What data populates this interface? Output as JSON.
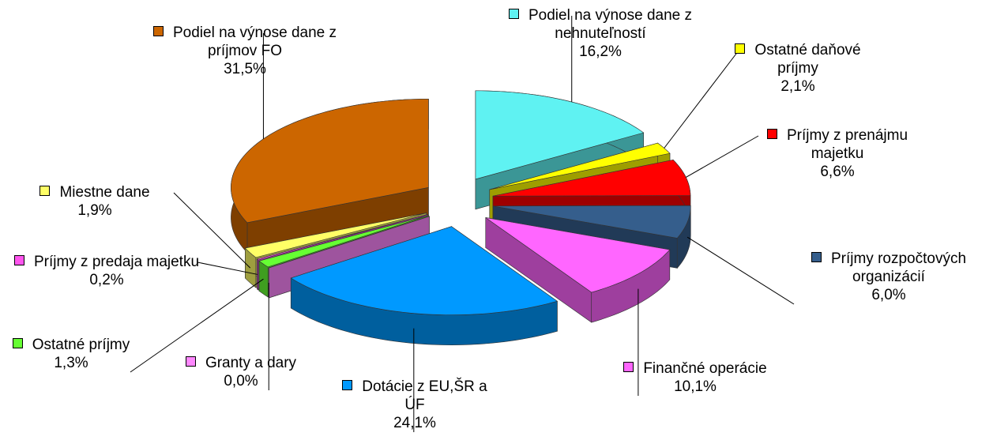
{
  "chart_data": {
    "type": "pie",
    "categories": [
      "Podiel na výnose dane z nehnuteľností",
      "Ostatné daňové príjmy",
      "Príjmy z prenájmu majetku",
      "Príjmy rozpočtových organizácií",
      "Finančné operácie",
      "Dotácie z EU,ŠR a ÚF",
      "Granty a dary",
      "Ostatné príjmy",
      "Príjmy z predaja majetku",
      "Miestne dane",
      "Podiel na výnose dane z príjmov FO"
    ],
    "values": [
      16.2,
      2.1,
      6.6,
      6.0,
      10.1,
      24.1,
      0.0,
      1.3,
      0.2,
      1.9,
      31.5
    ],
    "value_labels": [
      "16,2%",
      "2,1%",
      "6,6%",
      "6,0%",
      "10,1%",
      "24,1%",
      "0,0%",
      "1,3%",
      "0,2%",
      "1,9%",
      "31,5%"
    ],
    "colors": [
      "#5ff2f2",
      "#ffff00",
      "#ff0000",
      "#355e8c",
      "#ff66ff",
      "#0099ff",
      "#ff88ff",
      "#66ff33",
      "#ff55ee",
      "#ffff66",
      "#cc6600"
    ]
  }
}
